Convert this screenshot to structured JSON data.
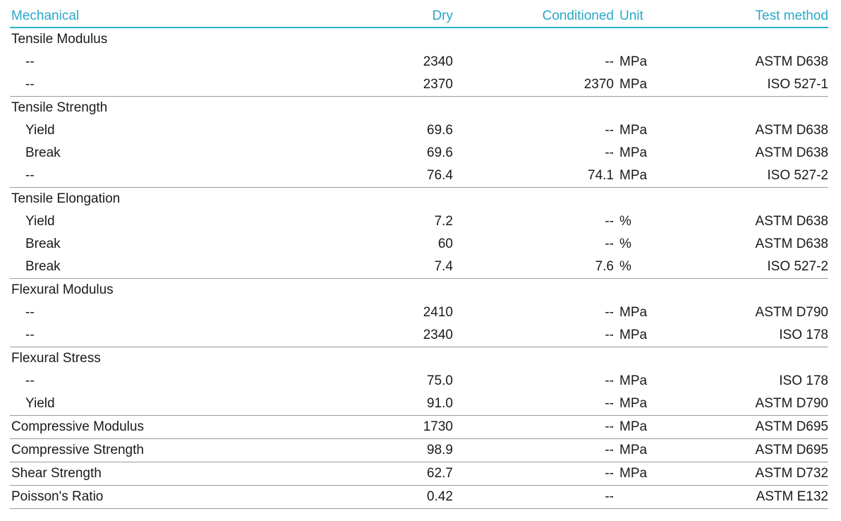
{
  "header": {
    "section": "Mechanical",
    "dry": "Dry",
    "conditioned": "Conditioned",
    "unit": "Unit",
    "test_method": "Test method"
  },
  "rows": [
    {
      "name": "Tensile Modulus",
      "dry": "",
      "cond": "",
      "unit": "",
      "test": ""
    },
    {
      "name": "--",
      "dry": "2340",
      "cond": "--",
      "unit": "MPa",
      "test": "ASTM D638"
    },
    {
      "name": "--",
      "dry": "2370",
      "cond": "2370",
      "unit": "MPa",
      "test": "ISO 527-1"
    },
    {
      "name": "Tensile Strength",
      "dry": "",
      "cond": "",
      "unit": "",
      "test": ""
    },
    {
      "name": "Yield",
      "dry": "69.6",
      "cond": "--",
      "unit": "MPa",
      "test": "ASTM D638"
    },
    {
      "name": "Break",
      "dry": "69.6",
      "cond": "--",
      "unit": "MPa",
      "test": "ASTM D638"
    },
    {
      "name": "--",
      "dry": "76.4",
      "cond": "74.1",
      "unit": "MPa",
      "test": "ISO 527-2"
    },
    {
      "name": "Tensile Elongation",
      "dry": "",
      "cond": "",
      "unit": "",
      "test": ""
    },
    {
      "name": "Yield",
      "dry": "7.2",
      "cond": "--",
      "unit": "%",
      "test": "ASTM D638"
    },
    {
      "name": "Break",
      "dry": "60",
      "cond": "--",
      "unit": "%",
      "test": "ASTM D638"
    },
    {
      "name": "Break",
      "dry": "7.4",
      "cond": "7.6",
      "unit": "%",
      "test": "ISO 527-2"
    },
    {
      "name": "Flexural Modulus",
      "dry": "",
      "cond": "",
      "unit": "",
      "test": ""
    },
    {
      "name": "--",
      "dry": "2410",
      "cond": "--",
      "unit": "MPa",
      "test": "ASTM D790"
    },
    {
      "name": "--",
      "dry": "2340",
      "cond": "--",
      "unit": "MPa",
      "test": "ISO 178"
    },
    {
      "name": "Flexural Stress",
      "dry": "",
      "cond": "",
      "unit": "",
      "test": ""
    },
    {
      "name": "--",
      "dry": "75.0",
      "cond": "--",
      "unit": "MPa",
      "test": "ISO 178"
    },
    {
      "name": "Yield",
      "dry": "91.0",
      "cond": "--",
      "unit": "MPa",
      "test": "ASTM D790"
    },
    {
      "name": "Compressive Modulus",
      "dry": "1730",
      "cond": "--",
      "unit": "MPa",
      "test": "ASTM D695"
    },
    {
      "name": "Compressive Strength",
      "dry": "98.9",
      "cond": "--",
      "unit": "MPa",
      "test": "ASTM D695"
    },
    {
      "name": "Shear Strength",
      "dry": "62.7",
      "cond": "--",
      "unit": "MPa",
      "test": "ASTM D732"
    },
    {
      "name": "Poisson's Ratio",
      "dry": "0.42",
      "cond": "--",
      "unit": "",
      "test": "ASTM E132"
    }
  ]
}
